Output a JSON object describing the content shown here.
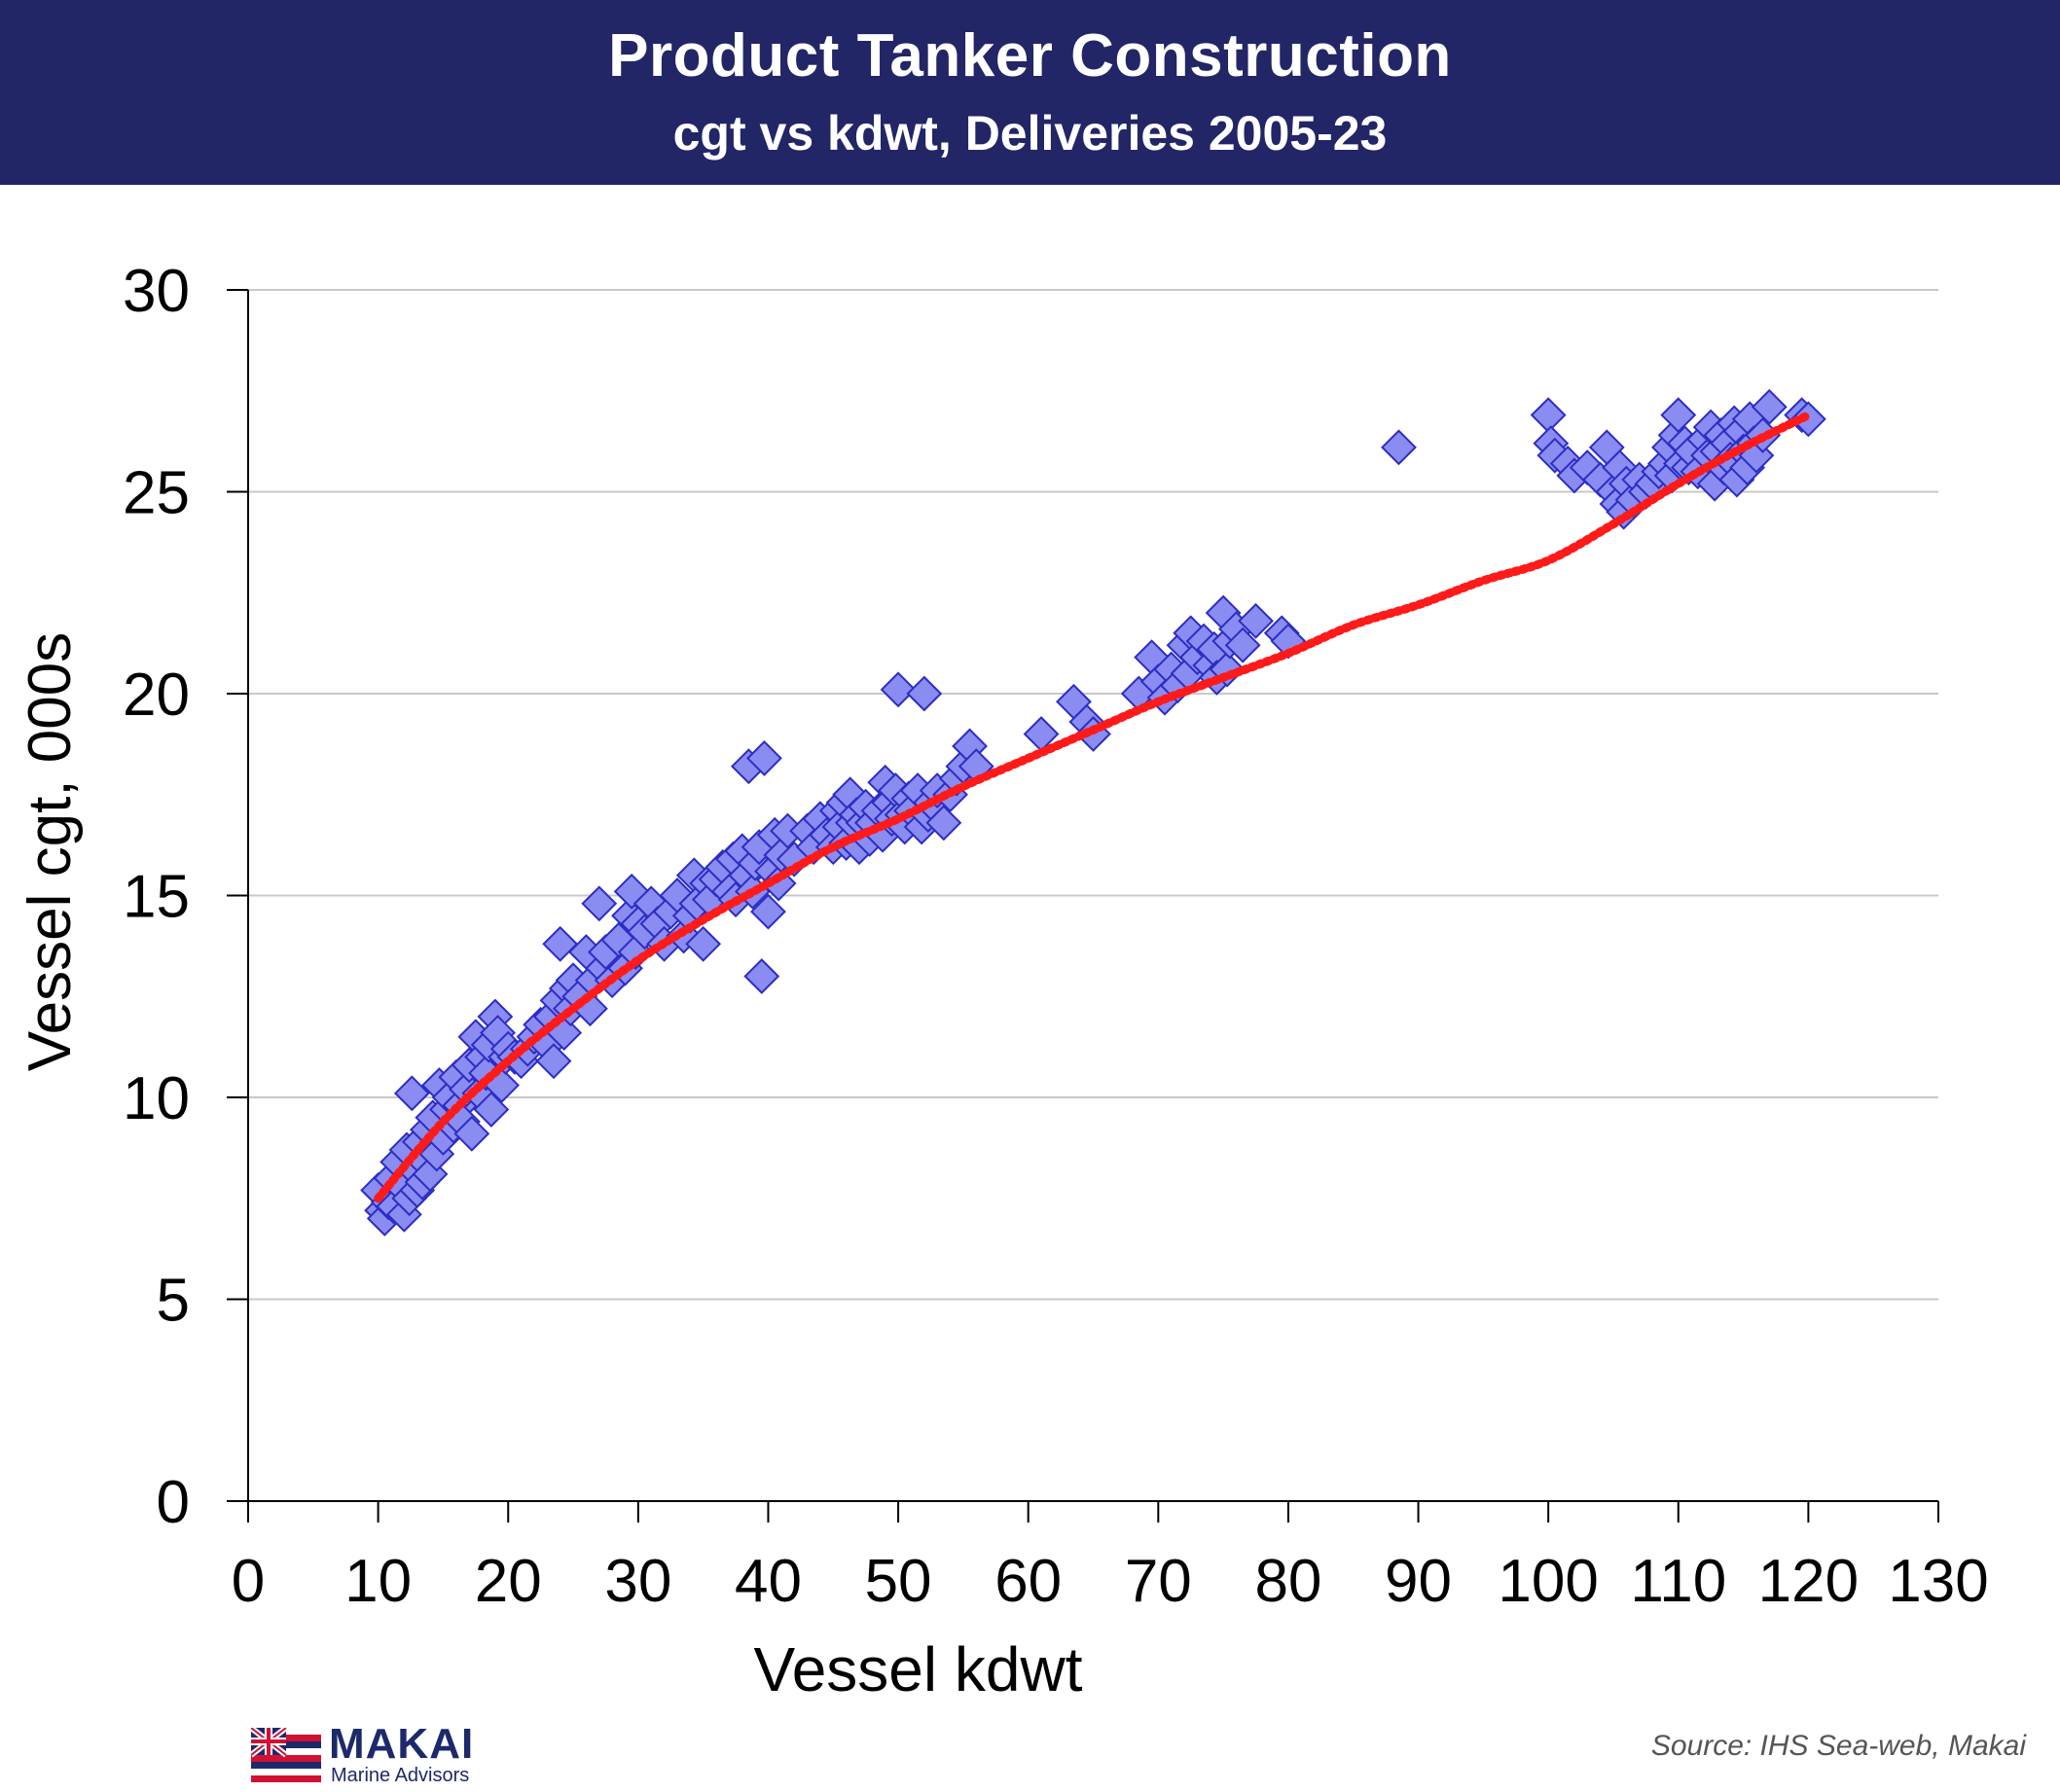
{
  "header": {
    "title": "Product Tanker Construction",
    "subtitle": "cgt vs kdwt, Deliveries 2005-23"
  },
  "footer": {
    "source": "Source: IHS Sea-web, Makai",
    "logo_name": "MAKAI",
    "logo_sub": "Marine Advisors",
    "logo_icon": "hawaii-flag-icon"
  },
  "colors": {
    "banner": "#222566",
    "marker_fill": "#8a8cf2",
    "marker_stroke": "#2b2dc4",
    "trend": "#ff1a1a",
    "grid": "#c8c8c8"
  },
  "chart_data": {
    "type": "scatter",
    "xlabel": "Vessel kdwt",
    "ylabel": "Vessel cgt, 000s",
    "xlim": [
      0,
      130
    ],
    "ylim": [
      0,
      30
    ],
    "xticks": [
      "0",
      "10",
      "20",
      "30",
      "40",
      "50",
      "60",
      "70",
      "80",
      "90",
      "100",
      "110",
      "120",
      "130"
    ],
    "yticks": [
      "0",
      "5",
      "10",
      "15",
      "20",
      "25",
      "30"
    ],
    "grid": "horizontal",
    "marker": "diamond",
    "series": [
      {
        "kind": "points",
        "points": [
          [
            10,
            7.7
          ],
          [
            10.3,
            7.2
          ],
          [
            10.5,
            7.0
          ],
          [
            10.8,
            7.4
          ],
          [
            11,
            8.0
          ],
          [
            11.2,
            7.3
          ],
          [
            11.5,
            8.4
          ],
          [
            11.8,
            7.8
          ],
          [
            12,
            7.1
          ],
          [
            12.2,
            8.7
          ],
          [
            12.4,
            7.5
          ],
          [
            12.6,
            10.1
          ],
          [
            12.8,
            8.2
          ],
          [
            13,
            7.7
          ],
          [
            13.2,
            8.9
          ],
          [
            13.4,
            7.9
          ],
          [
            13.6,
            8.4
          ],
          [
            13.8,
            9.2
          ],
          [
            14,
            8.1
          ],
          [
            14.2,
            9.5
          ],
          [
            14.5,
            8.6
          ],
          [
            14.7,
            10.3
          ],
          [
            15,
            9.0
          ],
          [
            15.3,
            9.7
          ],
          [
            15.5,
            10.0
          ],
          [
            15.8,
            9.3
          ],
          [
            16,
            10.5
          ],
          [
            16.3,
            9.8
          ],
          [
            16.5,
            9.4
          ],
          [
            16.8,
            10.2
          ],
          [
            17,
            10.8
          ],
          [
            17.2,
            9.1
          ],
          [
            17.5,
            11.5
          ],
          [
            17.8,
            10.1
          ],
          [
            18,
            11.0
          ],
          [
            18.3,
            10.6
          ],
          [
            18.5,
            11.3
          ],
          [
            18.7,
            9.7
          ],
          [
            19,
            12.0
          ],
          [
            19.2,
            11.6
          ],
          [
            19.5,
            10.3
          ],
          [
            19.8,
            11.0
          ],
          [
            20,
            11.2
          ],
          [
            20.5,
            11.0
          ],
          [
            21,
            10.9
          ],
          [
            21.5,
            11.2
          ],
          [
            22,
            11.5
          ],
          [
            22.5,
            11.8
          ],
          [
            23,
            11.3
          ],
          [
            23.3,
            12.0
          ],
          [
            23.5,
            10.9
          ],
          [
            23.8,
            12.4
          ],
          [
            24,
            13.8
          ],
          [
            24.3,
            11.6
          ],
          [
            24.5,
            12.7
          ],
          [
            24.8,
            12.2
          ],
          [
            25,
            12.9
          ],
          [
            25.5,
            12.5
          ],
          [
            26,
            13.6
          ],
          [
            26.3,
            12.2
          ],
          [
            26.5,
            12.9
          ],
          [
            27,
            14.8
          ],
          [
            27.3,
            13.2
          ],
          [
            27.5,
            13.6
          ],
          [
            28,
            12.9
          ],
          [
            28.5,
            13.9
          ],
          [
            29,
            13.2
          ],
          [
            29.3,
            14.5
          ],
          [
            29.5,
            15.1
          ],
          [
            29.8,
            13.6
          ],
          [
            30,
            14.3
          ],
          [
            30.5,
            14.1
          ],
          [
            31,
            14.8
          ],
          [
            31.5,
            14.3
          ],
          [
            32,
            13.8
          ],
          [
            32.5,
            14.6
          ],
          [
            33,
            15.0
          ],
          [
            33.5,
            14.0
          ],
          [
            34,
            14.5
          ],
          [
            34.3,
            15.5
          ],
          [
            34.5,
            14.8
          ],
          [
            35,
            13.8
          ],
          [
            35.3,
            15.3
          ],
          [
            35.5,
            14.9
          ],
          [
            36,
            15.4
          ],
          [
            36.5,
            15.7
          ],
          [
            37,
            15.1
          ],
          [
            37.3,
            15.9
          ],
          [
            37.5,
            14.9
          ],
          [
            38,
            16.1
          ],
          [
            38.3,
            15.5
          ],
          [
            38.5,
            18.2
          ],
          [
            38.8,
            15.1
          ],
          [
            39,
            15.8
          ],
          [
            39.3,
            16.2
          ],
          [
            39.5,
            13.0
          ],
          [
            39.7,
            18.4
          ],
          [
            40,
            14.6
          ],
          [
            40.3,
            15.6
          ],
          [
            40.5,
            16.5
          ],
          [
            40.8,
            15.3
          ],
          [
            41,
            16.0
          ],
          [
            41.5,
            16.6
          ],
          [
            42,
            15.9
          ],
          [
            43,
            16.6
          ],
          [
            43.5,
            16.2
          ],
          [
            44,
            16.9
          ],
          [
            44.5,
            16.5
          ],
          [
            45,
            16.2
          ],
          [
            45.3,
            17.1
          ],
          [
            45.5,
            16.7
          ],
          [
            45.8,
            17.3
          ],
          [
            46,
            16.3
          ],
          [
            46.3,
            17.5
          ],
          [
            46.5,
            16.8
          ],
          [
            46.8,
            17.0
          ],
          [
            47,
            16.2
          ],
          [
            47.3,
            16.8
          ],
          [
            47.5,
            17.2
          ],
          [
            47.8,
            16.4
          ],
          [
            48,
            16.8
          ],
          [
            48.5,
            17.1
          ],
          [
            48.8,
            16.5
          ],
          [
            49,
            17.8
          ],
          [
            49.3,
            17.3
          ],
          [
            49.5,
            16.9
          ],
          [
            49.8,
            17.6
          ],
          [
            50,
            20.1
          ],
          [
            50.3,
            17.0
          ],
          [
            50.5,
            16.7
          ],
          [
            50.8,
            17.4
          ],
          [
            51,
            17.1
          ],
          [
            51.5,
            17.6
          ],
          [
            51.8,
            16.7
          ],
          [
            52,
            20.0
          ],
          [
            52.3,
            17.0
          ],
          [
            52.5,
            17.3
          ],
          [
            53,
            17.6
          ],
          [
            53.5,
            16.8
          ],
          [
            54,
            17.5
          ],
          [
            54.5,
            17.9
          ],
          [
            55,
            18.2
          ],
          [
            55.5,
            18.7
          ],
          [
            56,
            18.2
          ],
          [
            61,
            19.0
          ],
          [
            63.5,
            19.8
          ],
          [
            64.5,
            19.3
          ],
          [
            65,
            19.0
          ],
          [
            68.5,
            20.0
          ],
          [
            69.5,
            20.9
          ],
          [
            70,
            20.3
          ],
          [
            70.5,
            19.9
          ],
          [
            71,
            20.6
          ],
          [
            71.5,
            20.2
          ],
          [
            72,
            21.2
          ],
          [
            72.3,
            20.5
          ],
          [
            72.5,
            21.5
          ],
          [
            73,
            20.9
          ],
          [
            73.5,
            21.3
          ],
          [
            74,
            20.7
          ],
          [
            74.3,
            21.1
          ],
          [
            74.5,
            20.4
          ],
          [
            75,
            22.0
          ],
          [
            75.3,
            20.6
          ],
          [
            75.5,
            21.3
          ],
          [
            76,
            21.6
          ],
          [
            76.5,
            21.2
          ],
          [
            77.5,
            21.8
          ],
          [
            79.5,
            21.5
          ],
          [
            80,
            21.3
          ],
          [
            88.5,
            26.1
          ],
          [
            100,
            26.9
          ],
          [
            100.2,
            26.2
          ],
          [
            100.5,
            25.9
          ],
          [
            101.5,
            25.7
          ],
          [
            102,
            25.4
          ],
          [
            103,
            25.6
          ],
          [
            104,
            25.3
          ],
          [
            104.5,
            26.1
          ],
          [
            105,
            25.0
          ],
          [
            105.3,
            24.7
          ],
          [
            105.5,
            25.6
          ],
          [
            105.8,
            24.5
          ],
          [
            106,
            25.2
          ],
          [
            106.5,
            24.8
          ],
          [
            107,
            25.3
          ],
          [
            107.5,
            25.0
          ],
          [
            108,
            25.2
          ],
          [
            108.5,
            25.5
          ],
          [
            109,
            25.7
          ],
          [
            109.3,
            26.1
          ],
          [
            109.5,
            25.4
          ],
          [
            109.8,
            26.4
          ],
          [
            110,
            26.9
          ],
          [
            110.2,
            25.7
          ],
          [
            110.5,
            26.2
          ],
          [
            110.8,
            25.6
          ],
          [
            111,
            26.0
          ],
          [
            111.5,
            25.5
          ],
          [
            112,
            26.3
          ],
          [
            112.3,
            25.9
          ],
          [
            112.5,
            26.6
          ],
          [
            112.8,
            25.2
          ],
          [
            113,
            26.0
          ],
          [
            113.3,
            26.4
          ],
          [
            113.5,
            25.6
          ],
          [
            113.8,
            26.2
          ],
          [
            114,
            25.8
          ],
          [
            114.3,
            26.7
          ],
          [
            114.5,
            25.3
          ],
          [
            114.8,
            26.5
          ],
          [
            115,
            26.0
          ],
          [
            115.3,
            25.6
          ],
          [
            115.5,
            26.8
          ],
          [
            115.8,
            26.2
          ],
          [
            116,
            25.9
          ],
          [
            116.5,
            26.4
          ],
          [
            117,
            27.1
          ],
          [
            119.5,
            26.9
          ],
          [
            120,
            26.8
          ]
        ]
      },
      {
        "kind": "trend",
        "x": [
          10,
          15,
          20,
          25,
          30,
          35,
          40,
          45,
          50,
          55,
          60,
          65,
          70,
          75,
          80,
          85,
          90,
          95,
          100,
          105,
          110,
          115,
          120
        ],
        "values": [
          7.5,
          9.4,
          10.9,
          12.2,
          13.4,
          14.4,
          15.3,
          16.2,
          16.9,
          17.7,
          18.4,
          19.1,
          19.8,
          20.4,
          21.0,
          21.7,
          22.2,
          22.8,
          23.3,
          24.2,
          25.2,
          26.1,
          26.9
        ]
      }
    ]
  }
}
